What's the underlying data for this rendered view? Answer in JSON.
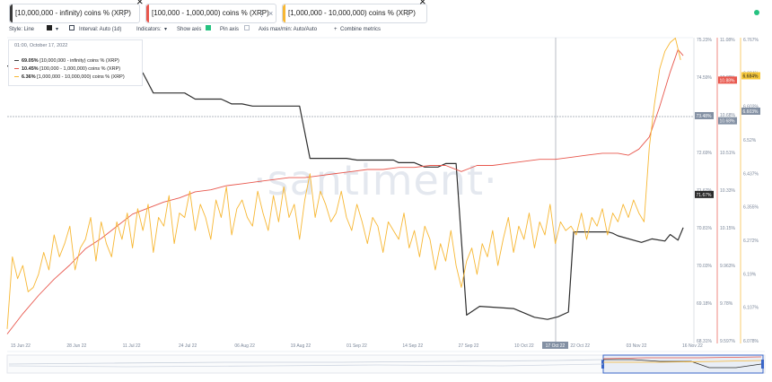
{
  "metrics": [
    {
      "label": "[10,000,000 - infinity) coins % (XRP)",
      "color": "#3a3a3a",
      "more": "⋮",
      "close": "×"
    },
    {
      "label": "[100,000 - 1,000,000) coins % (XRP)",
      "color": "#e8574d",
      "more": "⋮",
      "close": "×"
    },
    {
      "label": "[1,000,000 - 10,000,000) coins % (XRP)",
      "color": "#f7b733",
      "more": "⋮",
      "close": "×"
    }
  ],
  "settings": {
    "style": "Style: Line",
    "interval": "Interval: Auto (1d)",
    "indicators": "Indicators:",
    "show_axis": "Show axis",
    "pin_axis": "Pin axis",
    "axis_maxmin": "Axis max/min: Auto/Auto",
    "combine": "Combine metrics"
  },
  "legend": {
    "date": "01:00, October 17, 2022",
    "rows": [
      {
        "value": "69.05%",
        "label": "[10,000,000 - infinity) coins % (XRP)",
        "color": "#3a3a3a"
      },
      {
        "value": "10.45%",
        "label": "[100,000 - 1,000,000) coins % (XRP)",
        "color": "#e8574d"
      },
      {
        "value": "6.36%",
        "label": "[1,000,000 - 10,000,000) coins % (XRP)",
        "color": "#f7b733"
      }
    ]
  },
  "watermark": "·santiment·",
  "crosshair_date": "17 Oct 22",
  "chart_data": {
    "type": "line",
    "x_ticks": [
      "15 Jun 22",
      "28 Jun 22",
      "11 Jul 22",
      "24 Jul 22",
      "06 Aug 22",
      "19 Aug 22",
      "01 Sep 22",
      "14 Sep 22",
      "27 Sep 22",
      "10 Oct 22",
      "22 Oct 22",
      "03 Nov 22",
      "16 Nov 22"
    ],
    "axes": [
      {
        "id": "black",
        "ticks": [
          "75.23%",
          "74.59%",
          "73.48%",
          "72.69%",
          "71.67%",
          "70.81%",
          "70.03%",
          "69.18%",
          "68.31%"
        ],
        "ylim": [
          68.31,
          75.23
        ]
      },
      {
        "id": "red",
        "ticks": [
          "11.08%",
          "10.88%",
          "10.68%",
          "10.51%",
          "10.33%",
          "10.15%",
          "9.963%",
          "9.78%",
          "9.597%"
        ],
        "ylim": [
          9.597,
          11.08
        ]
      },
      {
        "id": "yellow",
        "ticks": [
          "6.767%",
          "6.684%",
          "6.603%",
          "6.52%",
          "6.437%",
          "6.355%",
          "6.272%",
          "6.19%",
          "6.107%",
          "6.078%"
        ],
        "ylim": [
          6.078,
          6.767
        ]
      }
    ],
    "badges": [
      {
        "axis": "black",
        "text": "73.48%",
        "color": "#8390a3"
      },
      {
        "axis": "black",
        "text": "71.67%",
        "color": "#2b2b2b"
      },
      {
        "axis": "red",
        "text": "10.88%",
        "color": "#e8574d"
      },
      {
        "axis": "red",
        "text": "10.68%",
        "color": "#8390a3"
      },
      {
        "axis": "yellow",
        "text": "6.684%",
        "color": "#f7c83a"
      },
      {
        "axis": "yellow",
        "text": "6.603%",
        "color": "#8390a3"
      }
    ],
    "series": [
      {
        "name": "[10,000,000 - infinity) coins % (XRP)",
        "color": "#2e2e2e",
        "axis": "black",
        "points": [
          [
            0,
            74.62
          ],
          [
            4,
            74.62
          ],
          [
            8,
            74.52
          ],
          [
            14,
            74.52
          ],
          [
            20,
            74.5
          ],
          [
            28,
            74.5
          ],
          [
            34,
            74.47
          ],
          [
            42,
            74.47
          ],
          [
            52,
            74.46
          ],
          [
            56,
            74.0
          ],
          [
            68,
            74.0
          ],
          [
            72,
            73.86
          ],
          [
            82,
            73.86
          ],
          [
            86,
            73.75
          ],
          [
            90,
            73.75
          ],
          [
            94,
            73.7
          ],
          [
            112,
            73.7
          ],
          [
            116,
            72.5
          ],
          [
            130,
            72.5
          ],
          [
            134,
            72.46
          ],
          [
            148,
            72.46
          ],
          [
            150,
            72.4
          ],
          [
            156,
            72.4
          ],
          [
            160,
            72.3
          ],
          [
            165,
            72.3
          ],
          [
            168,
            72.38
          ],
          [
            172,
            72.38
          ],
          [
            176,
            68.9
          ],
          [
            181,
            69.1
          ],
          [
            194,
            69.05
          ],
          [
            202,
            68.85
          ],
          [
            207,
            68.8
          ],
          [
            211,
            68.86
          ],
          [
            215,
            68.97
          ],
          [
            217,
            70.81
          ],
          [
            230,
            70.81
          ],
          [
            232,
            70.78
          ],
          [
            234,
            70.72
          ],
          [
            243,
            70.57
          ],
          [
            247,
            70.65
          ],
          [
            252,
            70.6
          ],
          [
            254,
            70.75
          ],
          [
            257,
            70.62
          ],
          [
            259,
            70.91
          ]
        ]
      },
      {
        "name": "[100,000 - 1,000,000) coins % (XRP)",
        "color": "#e8574d",
        "axis": "red",
        "points": [
          [
            0,
            9.63
          ],
          [
            6,
            9.73
          ],
          [
            12,
            9.82
          ],
          [
            18,
            9.9
          ],
          [
            24,
            9.97
          ],
          [
            30,
            10.05
          ],
          [
            36,
            10.1
          ],
          [
            42,
            10.16
          ],
          [
            48,
            10.22
          ],
          [
            54,
            10.25
          ],
          [
            60,
            10.28
          ],
          [
            66,
            10.3
          ],
          [
            72,
            10.33
          ],
          [
            78,
            10.34
          ],
          [
            84,
            10.36
          ],
          [
            90,
            10.37
          ],
          [
            96,
            10.38
          ],
          [
            102,
            10.39
          ],
          [
            108,
            10.4
          ],
          [
            114,
            10.4
          ],
          [
            120,
            10.41
          ],
          [
            126,
            10.42
          ],
          [
            132,
            10.43
          ],
          [
            138,
            10.44
          ],
          [
            144,
            10.44
          ],
          [
            150,
            10.45
          ],
          [
            156,
            10.45
          ],
          [
            162,
            10.46
          ],
          [
            168,
            10.46
          ],
          [
            174,
            10.43
          ],
          [
            180,
            10.46
          ],
          [
            186,
            10.46
          ],
          [
            192,
            10.47
          ],
          [
            198,
            10.48
          ],
          [
            204,
            10.49
          ],
          [
            210,
            10.49
          ],
          [
            216,
            10.5
          ],
          [
            222,
            10.51
          ],
          [
            228,
            10.52
          ],
          [
            234,
            10.52
          ],
          [
            238,
            10.51
          ],
          [
            242,
            10.54
          ],
          [
            246,
            10.6
          ],
          [
            250,
            10.75
          ],
          [
            254,
            10.92
          ],
          [
            257,
            11.03
          ],
          [
            259,
            11.0
          ]
        ]
      },
      {
        "name": "[1,000,000 - 10,000,000) coins % (XRP)",
        "color": "#f7b733",
        "axis": "yellow",
        "points": [
          [
            0,
            6.105
          ],
          [
            2,
            6.27
          ],
          [
            4,
            6.22
          ],
          [
            6,
            6.25
          ],
          [
            8,
            6.19
          ],
          [
            10,
            6.2
          ],
          [
            12,
            6.23
          ],
          [
            14,
            6.28
          ],
          [
            16,
            6.24
          ],
          [
            18,
            6.32
          ],
          [
            20,
            6.27
          ],
          [
            22,
            6.3
          ],
          [
            24,
            6.34
          ],
          [
            26,
            6.24
          ],
          [
            28,
            6.29
          ],
          [
            30,
            6.31
          ],
          [
            32,
            6.36
          ],
          [
            34,
            6.26
          ],
          [
            36,
            6.35
          ],
          [
            38,
            6.3
          ],
          [
            40,
            6.27
          ],
          [
            42,
            6.35
          ],
          [
            44,
            6.31
          ],
          [
            46,
            6.37
          ],
          [
            48,
            6.29
          ],
          [
            50,
            6.38
          ],
          [
            52,
            6.33
          ],
          [
            54,
            6.39
          ],
          [
            56,
            6.28
          ],
          [
            58,
            6.36
          ],
          [
            60,
            6.34
          ],
          [
            62,
            6.41
          ],
          [
            64,
            6.3
          ],
          [
            66,
            6.37
          ],
          [
            68,
            6.36
          ],
          [
            70,
            6.42
          ],
          [
            72,
            6.33
          ],
          [
            74,
            6.39
          ],
          [
            76,
            6.36
          ],
          [
            78,
            6.31
          ],
          [
            80,
            6.4
          ],
          [
            82,
            6.36
          ],
          [
            84,
            6.43
          ],
          [
            86,
            6.32
          ],
          [
            88,
            6.38
          ],
          [
            90,
            6.4
          ],
          [
            92,
            6.36
          ],
          [
            94,
            6.34
          ],
          [
            96,
            6.42
          ],
          [
            98,
            6.37
          ],
          [
            100,
            6.33
          ],
          [
            102,
            6.41
          ],
          [
            104,
            6.35
          ],
          [
            106,
            6.43
          ],
          [
            108,
            6.36
          ],
          [
            110,
            6.39
          ],
          [
            112,
            6.31
          ],
          [
            114,
            6.4
          ],
          [
            116,
            6.46
          ],
          [
            118,
            6.36
          ],
          [
            120,
            6.42
          ],
          [
            122,
            6.39
          ],
          [
            124,
            6.35
          ],
          [
            126,
            6.37
          ],
          [
            128,
            6.42
          ],
          [
            130,
            6.36
          ],
          [
            132,
            6.33
          ],
          [
            134,
            6.39
          ],
          [
            136,
            6.35
          ],
          [
            138,
            6.3
          ],
          [
            140,
            6.36
          ],
          [
            142,
            6.34
          ],
          [
            144,
            6.28
          ],
          [
            146,
            6.35
          ],
          [
            148,
            6.33
          ],
          [
            150,
            6.31
          ],
          [
            152,
            6.37
          ],
          [
            154,
            6.29
          ],
          [
            156,
            6.33
          ],
          [
            158,
            6.27
          ],
          [
            160,
            6.34
          ],
          [
            162,
            6.31
          ],
          [
            164,
            6.24
          ],
          [
            166,
            6.3
          ],
          [
            168,
            6.26
          ],
          [
            170,
            6.33
          ],
          [
            172,
            6.25
          ],
          [
            174,
            6.2
          ],
          [
            176,
            6.26
          ],
          [
            178,
            6.29
          ],
          [
            180,
            6.23
          ],
          [
            182,
            6.3
          ],
          [
            184,
            6.27
          ],
          [
            186,
            6.33
          ],
          [
            188,
            6.25
          ],
          [
            190,
            6.31
          ],
          [
            192,
            6.36
          ],
          [
            194,
            6.28
          ],
          [
            196,
            6.34
          ],
          [
            198,
            6.31
          ],
          [
            200,
            6.37
          ],
          [
            202,
            6.29
          ],
          [
            204,
            6.35
          ],
          [
            206,
            6.32
          ],
          [
            208,
            6.39
          ],
          [
            210,
            6.3
          ],
          [
            212,
            6.35
          ],
          [
            214,
            6.33
          ],
          [
            216,
            6.34
          ],
          [
            218,
            6.32
          ],
          [
            220,
            6.37
          ],
          [
            222,
            6.31
          ],
          [
            224,
            6.36
          ],
          [
            226,
            6.34
          ],
          [
            228,
            6.38
          ],
          [
            230,
            6.32
          ],
          [
            232,
            6.37
          ],
          [
            234,
            6.35
          ],
          [
            236,
            6.39
          ],
          [
            238,
            6.36
          ],
          [
            240,
            6.4
          ],
          [
            242,
            6.37
          ],
          [
            244,
            6.35
          ],
          [
            246,
            6.52
          ],
          [
            248,
            6.62
          ],
          [
            250,
            6.7
          ],
          [
            252,
            6.74
          ],
          [
            254,
            6.76
          ],
          [
            256,
            6.77
          ],
          [
            258,
            6.72
          ]
        ]
      }
    ]
  },
  "navigator": {
    "label": "overview"
  }
}
